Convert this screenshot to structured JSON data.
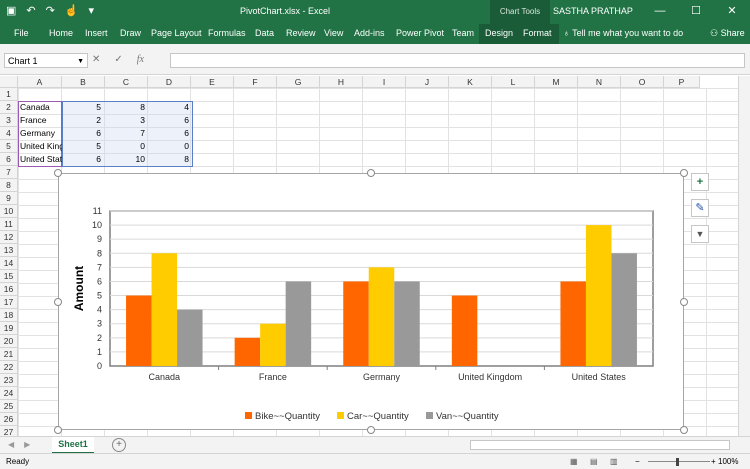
{
  "window": {
    "title": "PivotChart.xlsx  -  Excel",
    "context_tab": "Chart Tools",
    "user": "SASTHA PRATHAP",
    "controls": [
      "—",
      "☐",
      "✕"
    ],
    "qat": {
      "save": "▣",
      "undo": "↶",
      "redo": "↷",
      "touch": "☝",
      "more": "▾"
    }
  },
  "ribbon": {
    "tabs": [
      "File",
      "Home",
      "Insert",
      "Draw",
      "Page Layout",
      "Formulas",
      "Data",
      "Review",
      "View",
      "Add-ins",
      "Power Pivot",
      "Team",
      "Design",
      "Format"
    ],
    "tell_me": "Tell me what you want to do",
    "share": "Share"
  },
  "formula_bar": {
    "name_box": "Chart 1",
    "cancel": "✕",
    "enter": "✓",
    "fx": "fx",
    "value": ""
  },
  "columns": [
    "A",
    "B",
    "C",
    "D",
    "E",
    "F",
    "G",
    "H",
    "I",
    "J",
    "K",
    "L",
    "M",
    "N",
    "O",
    "P"
  ],
  "rows": [
    "1",
    "2",
    "3",
    "4",
    "5",
    "6",
    "7",
    "8",
    "9",
    "10",
    "11",
    "12",
    "13",
    "14",
    "15",
    "16",
    "17",
    "18",
    "19",
    "20",
    "21",
    "22",
    "23",
    "24",
    "25",
    "26",
    "27"
  ],
  "sheet_rows": [
    {
      "label": "Canada",
      "b": "5",
      "c": "8",
      "d": "4"
    },
    {
      "label": "France",
      "b": "2",
      "c": "3",
      "d": "6"
    },
    {
      "label": "Germany",
      "b": "6",
      "c": "7",
      "d": "6"
    },
    {
      "label": "United Kingdom",
      "b": "5",
      "c": "0",
      "d": "0"
    },
    {
      "label": "United States",
      "b": "6",
      "c": "10",
      "d": "8"
    }
  ],
  "chart_data": {
    "type": "bar",
    "categories": [
      "Canada",
      "France",
      "Germany",
      "United Kingdom",
      "United States"
    ],
    "series": [
      {
        "name": "Bike~~Quantity",
        "values": [
          5,
          2,
          6,
          5,
          6
        ],
        "color": "#ff6600"
      },
      {
        "name": "Car~~Quantity",
        "values": [
          8,
          3,
          7,
          0,
          10
        ],
        "color": "#ffcc00"
      },
      {
        "name": "Van~~Quantity",
        "values": [
          4,
          6,
          6,
          0,
          8
        ],
        "color": "#999999"
      }
    ],
    "title": "",
    "xlabel": "",
    "ylabel": "Amount",
    "ylim": [
      0,
      11
    ],
    "yticks": [
      "0",
      "1",
      "2",
      "3",
      "4",
      "5",
      "6",
      "7",
      "8",
      "9",
      "10",
      "11"
    ],
    "grid": true,
    "legend": "bottom"
  },
  "chart_buttons": {
    "elements": "+",
    "styles": "✎",
    "filter": "▼"
  },
  "sheet_tabs": {
    "active": "Sheet1",
    "add": "+",
    "nav": [
      "◀",
      "▶"
    ]
  },
  "status": {
    "ready": "Ready",
    "zoom_minus": "−",
    "zoom_plus": "+",
    "zoom": "100%"
  }
}
